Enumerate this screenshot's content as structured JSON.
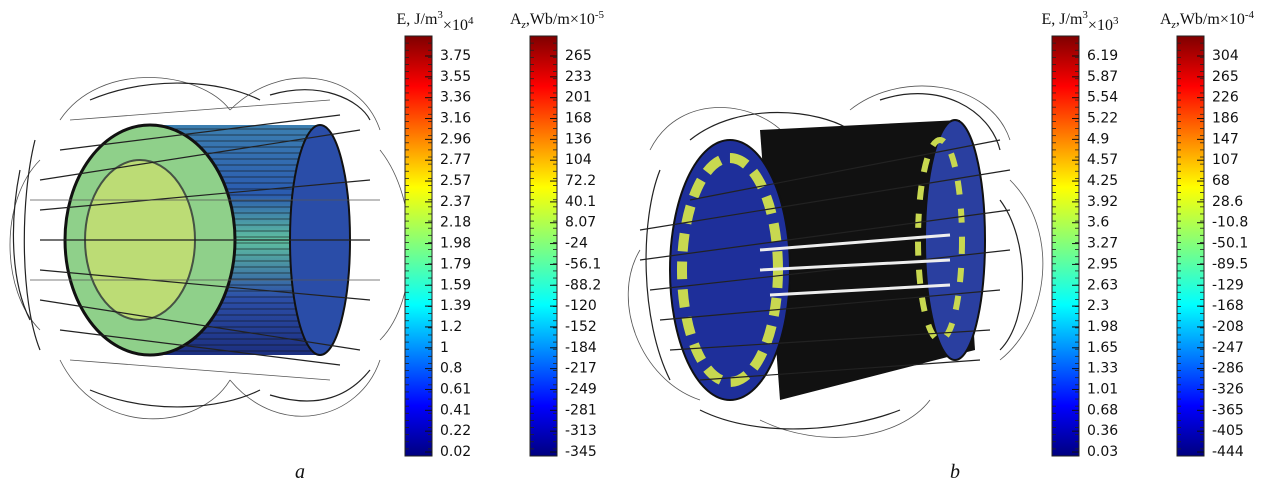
{
  "panels": [
    {
      "label": "a",
      "colorbars": [
        {
          "title": [
            "E, J/m",
            "3",
            "×10",
            "4"
          ],
          "ticks": [
            "3.75",
            "3.55",
            "3.36",
            "3.16",
            "2.96",
            "2.77",
            "2.57",
            "2.37",
            "2.18",
            "1.98",
            "1.79",
            "1.59",
            "1.39",
            "1.2",
            "1",
            "0.8",
            "0.61",
            "0.41",
            "0.22",
            "0.02"
          ]
        },
        {
          "title": [
            "A",
            "z",
            ",Wb/m×10",
            "-5"
          ],
          "ticks": [
            "265",
            "233",
            "201",
            "168",
            "136",
            "104",
            "72.2",
            "40.1",
            "8.07",
            "-24",
            "-56.1",
            "-88.2",
            "-120",
            "-152",
            "-184",
            "-217",
            "-249",
            "-281",
            "-313",
            "-345"
          ]
        }
      ]
    },
    {
      "label": "b",
      "colorbars": [
        {
          "title": [
            "E, J/m",
            "3",
            "×10",
            "3"
          ],
          "ticks": [
            "6.19",
            "5.87",
            "5.54",
            "5.22",
            "4.9",
            "4.57",
            "4.25",
            "3.92",
            "3.6",
            "3.27",
            "2.95",
            "2.63",
            "2.3",
            "1.98",
            "1.65",
            "1.33",
            "1.01",
            "0.68",
            "0.36",
            "0.03"
          ]
        },
        {
          "title": [
            "A",
            "z",
            ",Wb/m×10",
            "-4"
          ],
          "ticks": [
            "304",
            "265",
            "226",
            "186",
            "147",
            "107",
            "68",
            "28.6",
            "-10.8",
            "-50.1",
            "-89.5",
            "-129",
            "-168",
            "-208",
            "-247",
            "-286",
            "-326",
            "-365",
            "-405",
            "-444"
          ]
        }
      ]
    }
  ]
}
